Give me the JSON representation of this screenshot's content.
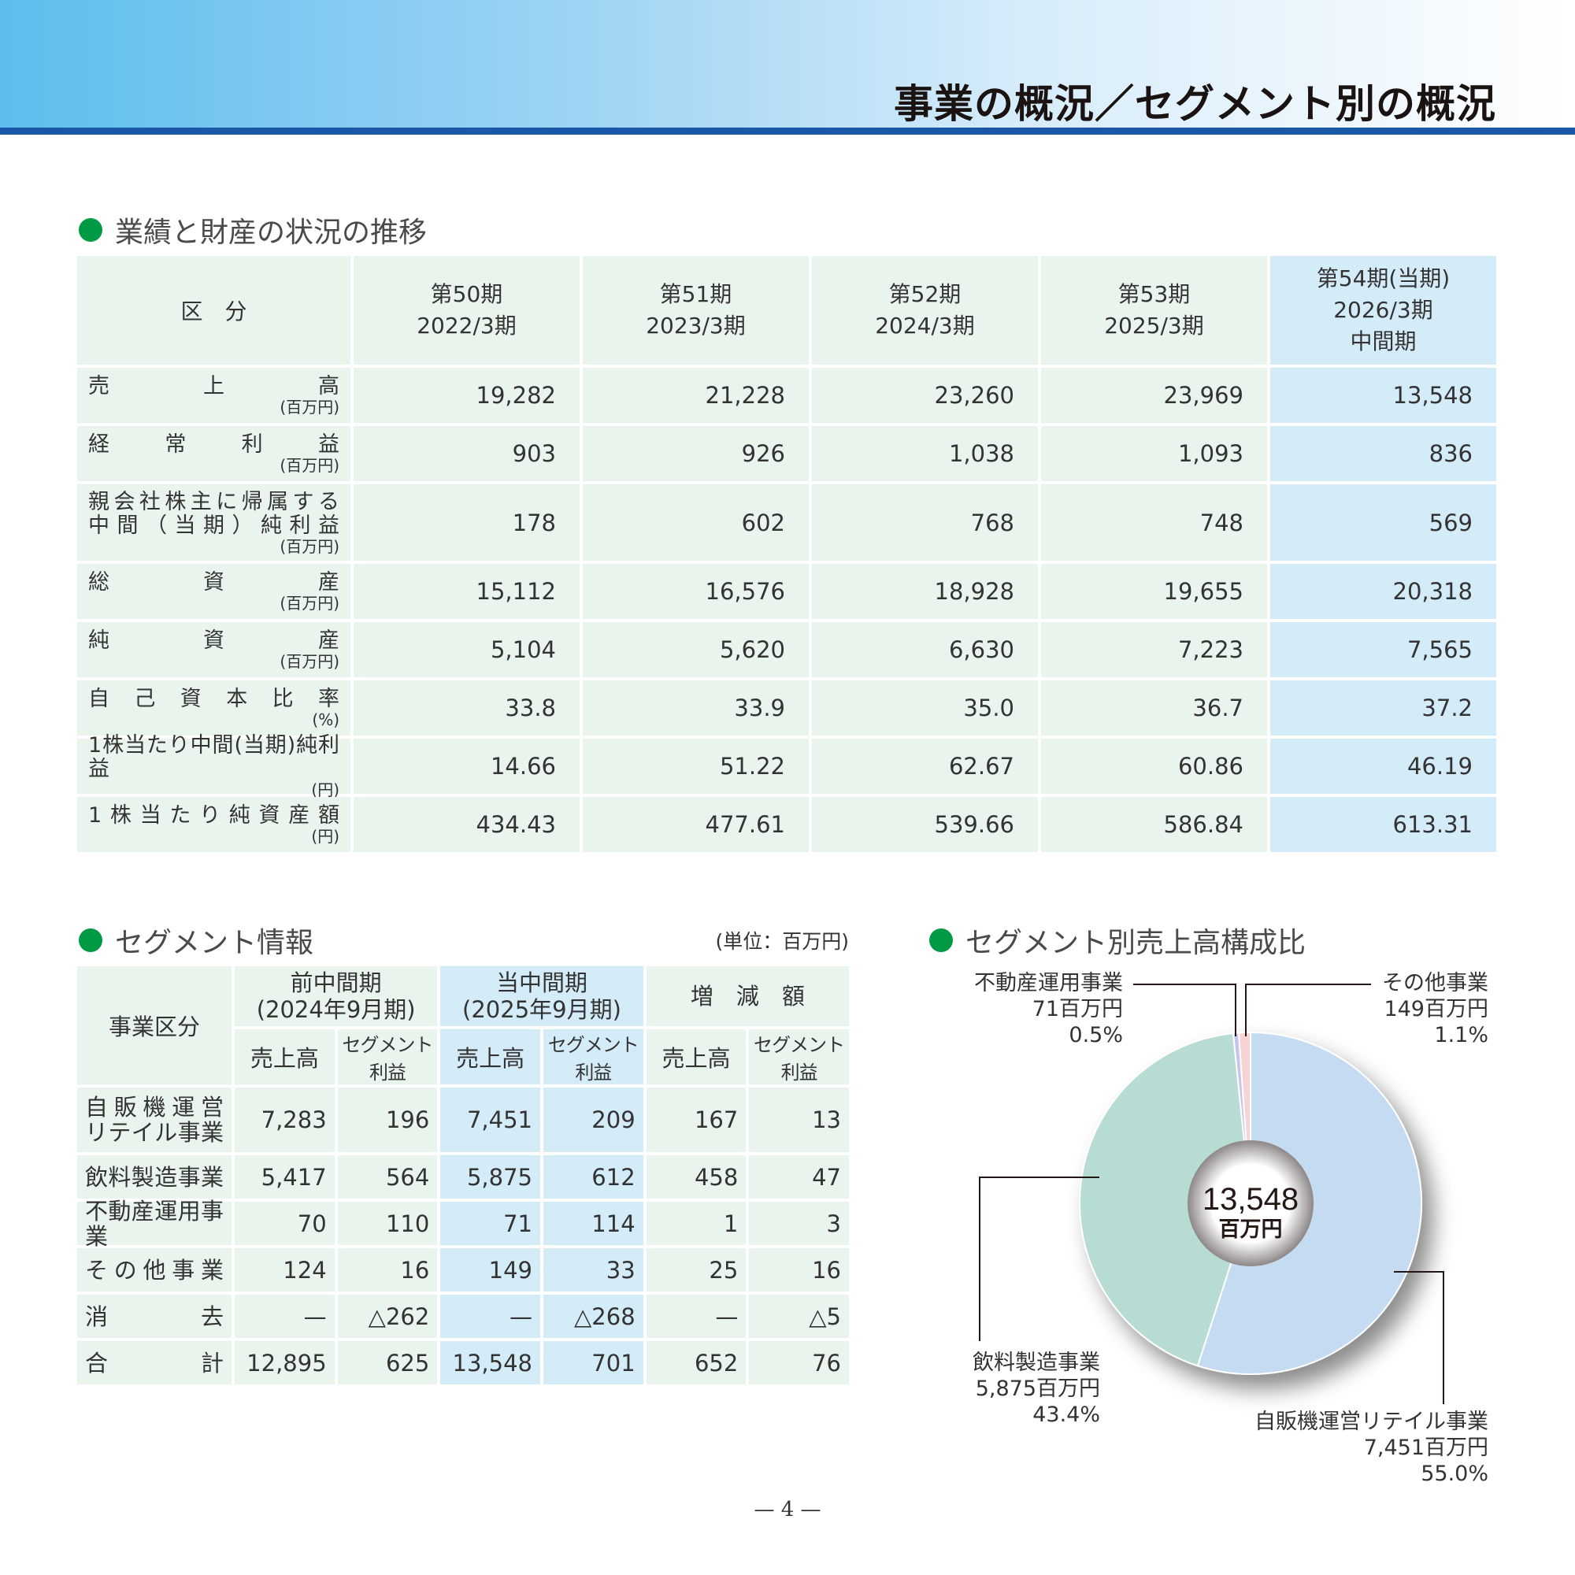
{
  "header": {
    "title": "事業の概況／セグメント別の概況",
    "accent": "#1b57a7"
  },
  "section1": {
    "heading": "業績と財産の状況の推移",
    "label_header": "区　分",
    "periods": [
      {
        "line1": "第50期",
        "line2": "2022/3期"
      },
      {
        "line1": "第51期",
        "line2": "2023/3期"
      },
      {
        "line1": "第52期",
        "line2": "2024/3期"
      },
      {
        "line1": "第53期",
        "line2": "2025/3期"
      },
      {
        "line1": "第54期(当期)",
        "line2": "2026/3期",
        "line3": "中間期"
      }
    ],
    "rows": [
      {
        "label": [
          "売上高"
        ],
        "unit": "(百万円)",
        "values": [
          "19,282",
          "21,228",
          "23,260",
          "23,969",
          "13,548"
        ]
      },
      {
        "label": [
          "経常利益"
        ],
        "unit": "(百万円)",
        "values": [
          "903",
          "926",
          "1,038",
          "1,093",
          "836"
        ]
      },
      {
        "label": [
          "親会社株主に帰属する",
          "中間（当期）純利益"
        ],
        "unit": "(百万円)",
        "values": [
          "178",
          "602",
          "768",
          "748",
          "569"
        ]
      },
      {
        "label": [
          "総資産"
        ],
        "unit": "(百万円)",
        "values": [
          "15,112",
          "16,576",
          "18,928",
          "19,655",
          "20,318"
        ]
      },
      {
        "label": [
          "純資産"
        ],
        "unit": "(百万円)",
        "values": [
          "5,104",
          "5,620",
          "6,630",
          "7,223",
          "7,565"
        ]
      },
      {
        "label": [
          "自己資本比率"
        ],
        "unit": "(%)",
        "values": [
          "33.8",
          "33.9",
          "35.0",
          "36.7",
          "37.2"
        ]
      },
      {
        "label": [
          "1株当たり中間(当期)純利益"
        ],
        "unit": "(円)",
        "values": [
          "14.66",
          "51.22",
          "62.67",
          "60.86",
          "46.19"
        ]
      },
      {
        "label": [
          "1株当たり純資産額"
        ],
        "unit": "(円)",
        "values": [
          "434.43",
          "477.61",
          "539.66",
          "586.84",
          "613.31"
        ]
      }
    ]
  },
  "section2": {
    "heading": "セグメント情報",
    "unit": "(単位：百万円)",
    "col_label": "事業区分",
    "groups": [
      {
        "line1": "前中間期",
        "line2": "(2024年9月期)"
      },
      {
        "line1": "当中間期",
        "line2": "(2025年9月期)"
      },
      {
        "line1": "増　減　額"
      }
    ],
    "sub": [
      "売上高",
      "セグメント利益",
      "売上高",
      "セグメント利益",
      "売上高",
      "セグメント利益"
    ],
    "rows": [
      {
        "label": [
          "自販機運営",
          "リテイル事業"
        ],
        "values": [
          "7,283",
          "196",
          "7,451",
          "209",
          "167",
          "13"
        ]
      },
      {
        "label": [
          "飲料製造事業"
        ],
        "values": [
          "5,417",
          "564",
          "5,875",
          "612",
          "458",
          "47"
        ]
      },
      {
        "label": [
          "不動産運用事業"
        ],
        "values": [
          "70",
          "110",
          "71",
          "114",
          "1",
          "3"
        ]
      },
      {
        "label": [
          "その他事業"
        ],
        "values": [
          "124",
          "16",
          "149",
          "33",
          "25",
          "16"
        ]
      },
      {
        "label": [
          "消去"
        ],
        "values": [
          "—",
          "△262",
          "—",
          "△268",
          "—",
          "△5"
        ]
      },
      {
        "label": [
          "合計"
        ],
        "values": [
          "12,895",
          "625",
          "13,548",
          "701",
          "652",
          "76"
        ]
      }
    ]
  },
  "section3": {
    "heading": "セグメント別売上高構成比"
  },
  "chart_data": {
    "type": "pie",
    "donut": true,
    "center_value": "13,548",
    "center_unit": "百万円",
    "categories": [
      "自販機運営リテイル事業",
      "飲料製造事業",
      "不動産運用事業",
      "その他事業"
    ],
    "values": [
      7451,
      5875,
      71,
      149
    ],
    "value_labels": [
      "7,451百万円",
      "5,875百万円",
      "71百万円",
      "149百万円"
    ],
    "percent_labels": [
      "55.0%",
      "43.4%",
      "0.5%",
      "1.1%"
    ],
    "colors": [
      "#c5dbf2",
      "#b7dcd4",
      "#c9c5e9",
      "#f7d4d4"
    ]
  },
  "footer": {
    "page": "— 4 —"
  }
}
